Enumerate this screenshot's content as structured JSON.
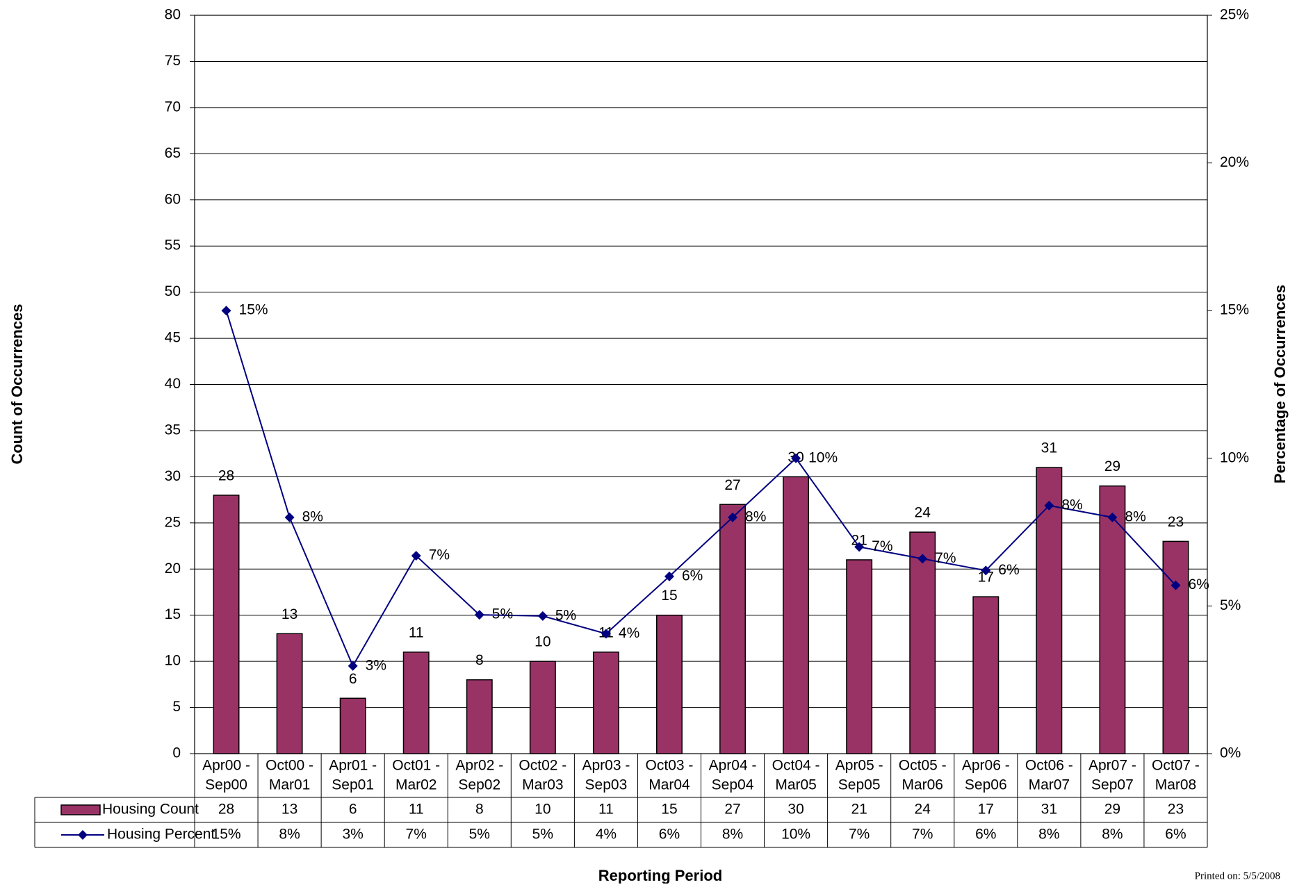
{
  "chart_data": {
    "type": "bar-line",
    "y_label": "Count of Occurrences",
    "y2_label": "Percentage of Occurrences",
    "x_label": "Reporting Period",
    "footer": "Printed on: 5/5/2008",
    "categories": [
      [
        "Apr00 -",
        "Sep00"
      ],
      [
        "Oct00 -",
        "Mar01"
      ],
      [
        "Apr01 -",
        "Sep01"
      ],
      [
        "Oct01 -",
        "Mar02"
      ],
      [
        "Apr02 -",
        "Sep02"
      ],
      [
        "Oct02 -",
        "Mar03"
      ],
      [
        "Apr03 -",
        "Sep03"
      ],
      [
        "Oct03 -",
        "Mar04"
      ],
      [
        "Apr04 -",
        "Sep04"
      ],
      [
        "Oct04 -",
        "Mar05"
      ],
      [
        "Apr05 -",
        "Sep05"
      ],
      [
        "Oct05 -",
        "Mar06"
      ],
      [
        "Apr06 -",
        "Sep06"
      ],
      [
        "Oct06 -",
        "Mar07"
      ],
      [
        "Apr07 -",
        "Sep07"
      ],
      [
        "Oct07 -",
        "Mar08"
      ]
    ],
    "series": [
      {
        "name": "Housing Count",
        "type": "bar",
        "color": "#993366",
        "values": [
          28,
          13,
          6,
          11,
          8,
          10,
          11,
          15,
          27,
          30,
          21,
          24,
          17,
          31,
          29,
          23
        ]
      },
      {
        "name": "Housing Percent",
        "type": "line",
        "axis": "y2",
        "color": "#000080",
        "values": [
          15,
          8,
          2.97,
          6.7,
          4.7,
          4.66,
          4.06,
          6,
          8,
          10,
          7,
          6.6,
          6.2,
          8.4,
          8,
          5.7
        ],
        "value_labels": [
          "15%",
          "8%",
          "3%",
          "7%",
          "5%",
          "5%",
          "4%",
          "6%",
          "8%",
          "10%",
          "7%",
          "7%",
          "6%",
          "8%",
          "8%",
          "6%"
        ]
      }
    ],
    "ylim": [
      0,
      80
    ],
    "yticks": [
      0,
      5,
      10,
      15,
      20,
      25,
      30,
      35,
      40,
      45,
      50,
      55,
      60,
      65,
      70,
      75,
      80
    ],
    "y2lim": [
      0,
      25
    ],
    "y2ticks": [
      {
        "value": 0,
        "label": "0%"
      },
      {
        "value": 5,
        "label": "5%"
      },
      {
        "value": 10,
        "label": "10%"
      },
      {
        "value": 15,
        "label": "15%"
      },
      {
        "value": 20,
        "label": "20%"
      },
      {
        "value": 25,
        "label": "25%"
      }
    ],
    "grid": true
  }
}
